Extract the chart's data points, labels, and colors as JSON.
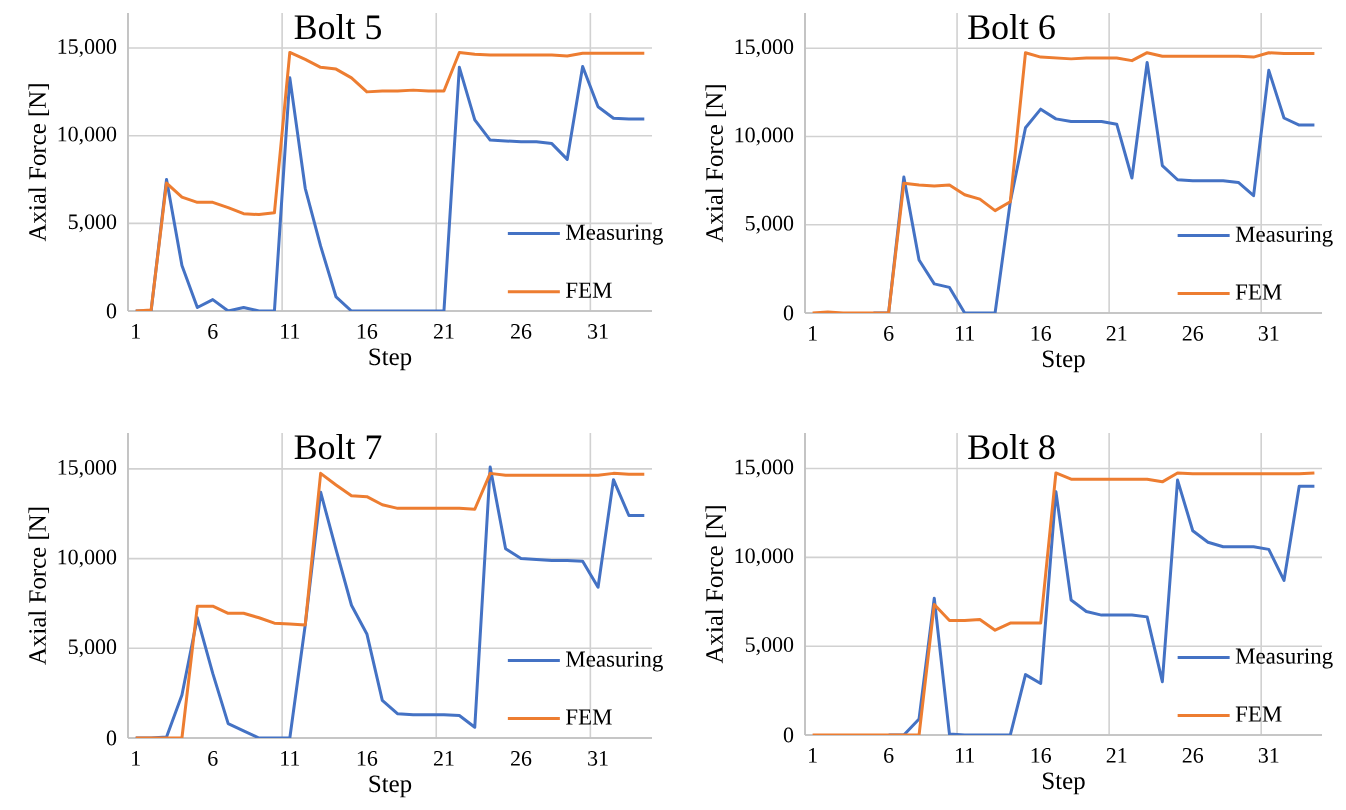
{
  "chart_data": [
    {
      "type": "line",
      "title": "Bolt 5",
      "xlabel": "Step",
      "ylabel": "Axial Force [N]",
      "categories": [
        "1",
        null,
        null,
        null,
        null,
        "6",
        null,
        null,
        null,
        null,
        "11",
        null,
        null,
        null,
        null,
        "16",
        null,
        null,
        null,
        null,
        "21",
        null,
        null,
        null,
        null,
        "26",
        null,
        null,
        null,
        null,
        "31",
        null,
        null,
        null
      ],
      "ylim": [
        0,
        17000
      ],
      "yticks": [
        0,
        {
          "value": 5000,
          "label": "5,000"
        },
        {
          "value": 10000,
          "label": "10,000"
        },
        {
          "value": 15000,
          "label": "15,000"
        }
      ],
      "grid": true,
      "legend": "bottom right",
      "marker": "none",
      "series": [
        {
          "name": "Measuring",
          "color": "#4472c4",
          "values": [
            0,
            0,
            7500,
            2600,
            200,
            650,
            0,
            200,
            0,
            0,
            13300,
            7000,
            3700,
            800,
            0,
            0,
            0,
            0,
            0,
            0,
            0,
            13900,
            10900,
            9750,
            9700,
            9650,
            9650,
            9550,
            8650,
            13950,
            11650,
            11000,
            10950,
            10950
          ]
        },
        {
          "name": "FEM",
          "color": "#ed7d31",
          "values": [
            0,
            50,
            7300,
            6500,
            6200,
            6200,
            5900,
            5550,
            5500,
            5600,
            14750,
            14350,
            13900,
            13800,
            13300,
            12500,
            12550,
            12550,
            12600,
            12550,
            12550,
            14750,
            14650,
            14600,
            14600,
            14600,
            14600,
            14600,
            14550,
            14700,
            14700,
            14700,
            14700,
            14700
          ]
        }
      ]
    },
    {
      "type": "line",
      "title": "Bolt 6",
      "xlabel": "Step",
      "ylabel": "Axial Force [N]",
      "categories": [
        "1",
        null,
        null,
        null,
        null,
        "6",
        null,
        null,
        null,
        null,
        "11",
        null,
        null,
        null,
        null,
        "16",
        null,
        null,
        null,
        null,
        "21",
        null,
        null,
        null,
        null,
        "26",
        null,
        null,
        null,
        null,
        "31",
        null,
        null,
        null
      ],
      "ylim": [
        0,
        17000
      ],
      "yticks": [
        0,
        {
          "value": 5000,
          "label": "5,000"
        },
        {
          "value": 10000,
          "label": "10,000"
        },
        {
          "value": 15000,
          "label": "15,000"
        }
      ],
      "grid": true,
      "legend": "bottom right",
      "marker": "none",
      "series": [
        {
          "name": "Measuring",
          "color": "#4472c4",
          "values": [
            null,
            null,
            null,
            null,
            0,
            0,
            7700,
            3000,
            1650,
            1450,
            0,
            0,
            0,
            6300,
            10500,
            11550,
            11000,
            10850,
            10850,
            10850,
            10700,
            7650,
            14200,
            8350,
            7550,
            7500,
            7500,
            7500,
            7400,
            6650,
            13750,
            11050,
            10650,
            10650
          ]
        },
        {
          "name": "FEM",
          "color": "#ed7d31",
          "values": [
            0,
            50,
            0,
            0,
            0,
            0,
            7350,
            7250,
            7200,
            7250,
            6700,
            6450,
            5800,
            6300,
            14750,
            14500,
            14450,
            14400,
            14450,
            14450,
            14450,
            14300,
            14750,
            14550,
            14550,
            14550,
            14550,
            14550,
            14550,
            14500,
            14750,
            14700,
            14700,
            14700
          ]
        }
      ]
    },
    {
      "type": "line",
      "title": "Bolt 7",
      "xlabel": "Step",
      "ylabel": "Axial Force [N]",
      "categories": [
        "1",
        null,
        null,
        null,
        null,
        "6",
        null,
        null,
        null,
        null,
        "11",
        null,
        null,
        null,
        null,
        "16",
        null,
        null,
        null,
        null,
        "21",
        null,
        null,
        null,
        null,
        "26",
        null,
        null,
        null,
        null,
        "31",
        null,
        null,
        null
      ],
      "ylim": [
        0,
        17000
      ],
      "yticks": [
        0,
        {
          "value": 5000,
          "label": "5,000"
        },
        {
          "value": 10000,
          "label": "10,000"
        },
        {
          "value": 15000,
          "label": "15,000"
        }
      ],
      "grid": true,
      "legend": "bottom right",
      "marker": "none",
      "series": [
        {
          "name": "Measuring",
          "color": "#4472c4",
          "values": [
            0,
            0,
            50,
            2400,
            6700,
            3600,
            800,
            400,
            0,
            0,
            0,
            6300,
            13700,
            10500,
            7400,
            5800,
            2100,
            1350,
            1300,
            1300,
            1300,
            1250,
            600,
            15100,
            10550,
            10000,
            9950,
            9900,
            9900,
            9850,
            8400,
            14400,
            12400,
            12400
          ]
        },
        {
          "name": "FEM",
          "color": "#ed7d31",
          "values": [
            0,
            0,
            0,
            0,
            7350,
            7350,
            6950,
            6950,
            6700,
            6400,
            6350,
            6300,
            14750,
            14100,
            13500,
            13450,
            13000,
            12800,
            12800,
            12800,
            12800,
            12800,
            12750,
            14750,
            14650,
            14650,
            14650,
            14650,
            14650,
            14650,
            14650,
            14750,
            14700,
            14700
          ]
        }
      ]
    },
    {
      "type": "line",
      "title": "Bolt 8",
      "xlabel": "Step",
      "ylabel": "Axial Force [N]",
      "categories": [
        "1",
        null,
        null,
        null,
        null,
        "6",
        null,
        null,
        null,
        null,
        "11",
        null,
        null,
        null,
        null,
        "16",
        null,
        null,
        null,
        null,
        "21",
        null,
        null,
        null,
        null,
        "26",
        null,
        null,
        null,
        null,
        "31",
        null,
        null,
        null
      ],
      "ylim": [
        0,
        17000
      ],
      "yticks": [
        0,
        {
          "value": 5000,
          "label": "5,000"
        },
        {
          "value": 10000,
          "label": "10,000"
        },
        {
          "value": 15000,
          "label": "15,000"
        }
      ],
      "grid": true,
      "legend": "bottom right",
      "marker": "none",
      "series": [
        {
          "name": "Measuring",
          "color": "#4472c4",
          "values": [
            null,
            null,
            null,
            null,
            null,
            0,
            0,
            900,
            7700,
            50,
            0,
            0,
            0,
            0,
            3400,
            2900,
            13700,
            7600,
            6950,
            6750,
            6750,
            6750,
            6650,
            3000,
            14350,
            11500,
            10850,
            10600,
            10600,
            10600,
            10450,
            8700,
            14000,
            14000
          ]
        },
        {
          "name": "FEM",
          "color": "#ed7d31",
          "values": [
            0,
            0,
            0,
            0,
            0,
            0,
            0,
            0,
            7350,
            6450,
            6450,
            6500,
            5900,
            6300,
            6300,
            6300,
            14750,
            14400,
            14400,
            14400,
            14400,
            14400,
            14400,
            14250,
            14750,
            14700,
            14700,
            14700,
            14700,
            14700,
            14700,
            14700,
            14700,
            14750
          ]
        }
      ]
    }
  ]
}
